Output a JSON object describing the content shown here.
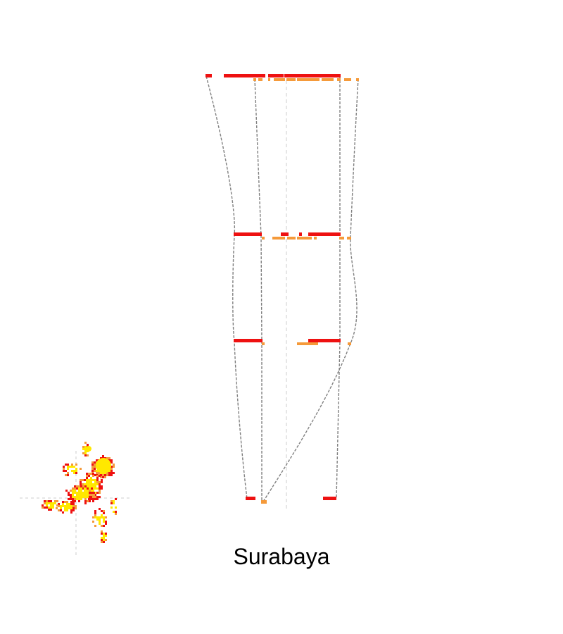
{
  "title": "Surabaya",
  "colors": {
    "red": "#ee1111",
    "orange": "#f59a3a",
    "yellow": "#ffe800",
    "connector": "#808080",
    "axis": "#cccccc"
  }
}
